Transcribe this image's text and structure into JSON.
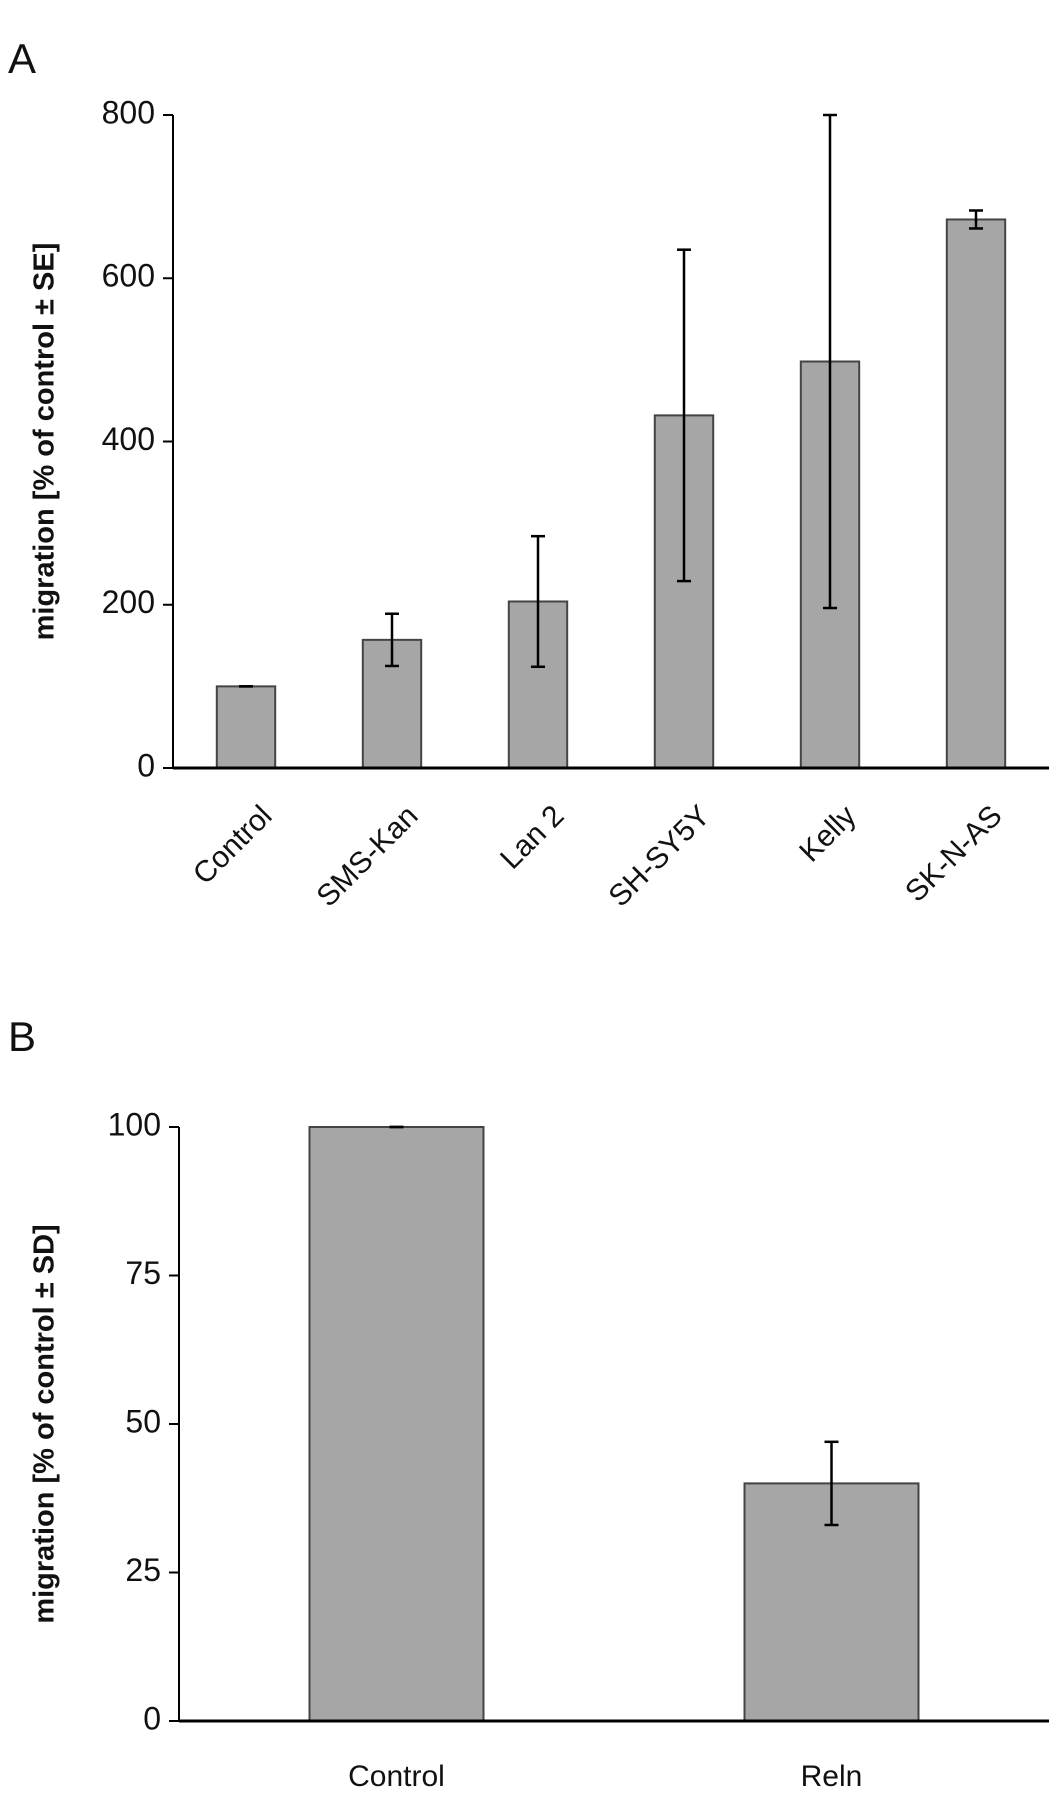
{
  "chart_data": [
    {
      "type": "bar",
      "panel_label": "A",
      "y_label": "migration [% of control ± SE]",
      "categories": [
        "Control",
        "SMS-Kan",
        "Lan 2",
        "SH-SY5Y",
        "Kelly",
        "SK-N-AS"
      ],
      "values": [
        100,
        157,
        204,
        432,
        498,
        672
      ],
      "errors": [
        0,
        32,
        80,
        203,
        302,
        11
      ],
      "color": "#a6a6a6",
      "ylim": [
        0,
        800
      ],
      "yticks": [
        0,
        200,
        400,
        600,
        800
      ],
      "rotate_labels": true
    },
    {
      "type": "bar",
      "panel_label": "B",
      "y_label": "migration [% of control ± SD]",
      "categories": [
        "Control",
        "Reln"
      ],
      "values": [
        100,
        40
      ],
      "errors": [
        0,
        7
      ],
      "color": "#a6a6a6",
      "ylim": [
        0,
        100
      ],
      "yticks": [
        0,
        25,
        50,
        75,
        100
      ],
      "rotate_labels": false
    }
  ]
}
